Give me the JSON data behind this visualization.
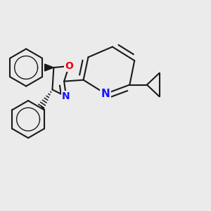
{
  "bg_color": "#ebebeb",
  "bond_color": "#1a1a1a",
  "N_color": "#1414ff",
  "O_color": "#ee0000",
  "bond_width": 1.5,
  "dbo": 0.035,
  "font_size": 10,
  "fig_size": [
    3.0,
    3.0
  ],
  "dpi": 100,
  "xlim": [
    0.0,
    3.0
  ],
  "ylim": [
    0.0,
    3.0
  ]
}
